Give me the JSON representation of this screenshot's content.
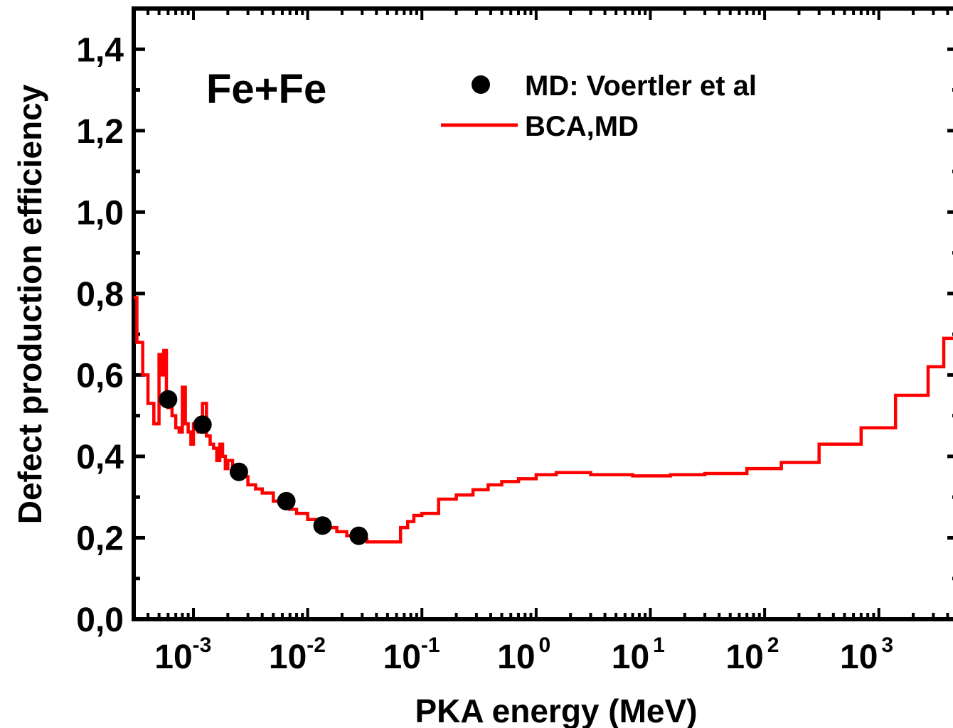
{
  "chart_data": {
    "type": "line",
    "xlabel": "PKA energy (MeV)",
    "ylabel": "Defect production efficiency",
    "xscale": "log",
    "xlim": [
      0.0003,
      5000
    ],
    "ylim": [
      0,
      1.5
    ],
    "x_ticks": [
      {
        "value": 0.001,
        "base": "10",
        "exp": "-3"
      },
      {
        "value": 0.01,
        "base": "10",
        "exp": "-2"
      },
      {
        "value": 0.1,
        "base": "10",
        "exp": "-1"
      },
      {
        "value": 1,
        "base": "10",
        "exp": "0"
      },
      {
        "value": 10,
        "base": "10",
        "exp": "1"
      },
      {
        "value": 100,
        "base": "10",
        "exp": "2"
      },
      {
        "value": 1000,
        "base": "10",
        "exp": "3"
      }
    ],
    "y_ticks": [
      {
        "value": 0.0,
        "label": "0,0"
      },
      {
        "value": 0.2,
        "label": "0,2"
      },
      {
        "value": 0.4,
        "label": "0,4"
      },
      {
        "value": 0.6,
        "label": "0,6"
      },
      {
        "value": 0.8,
        "label": "0,8"
      },
      {
        "value": 1.0,
        "label": "1,0"
      },
      {
        "value": 1.2,
        "label": "1,2"
      },
      {
        "value": 1.4,
        "label": "1,4"
      }
    ],
    "annotation": "Fe+Fe",
    "legend": [
      {
        "label": "MD: Voertler et al",
        "marker": "circle",
        "color": "#000000"
      },
      {
        "label": "BCA,MD",
        "marker": "line",
        "color": "#ff0000"
      }
    ],
    "legend_position": "top-center",
    "series": [
      {
        "name": "MD: Voertler et al",
        "style": "scatter",
        "color": "#000000",
        "x": [
          0.0006,
          0.0012,
          0.0025,
          0.0065,
          0.0135,
          0.028
        ],
        "y": [
          0.54,
          0.478,
          0.362,
          0.29,
          0.23,
          0.205
        ]
      },
      {
        "name": "BCA,MD",
        "style": "step",
        "color": "#ff0000",
        "x": [
          0.0003,
          0.00032,
          0.00036,
          0.0004,
          0.00045,
          0.0005,
          0.00052,
          0.00055,
          0.00058,
          0.0006,
          0.00065,
          0.0007,
          0.00075,
          0.0008,
          0.00085,
          0.0009,
          0.00095,
          0.001,
          0.0011,
          0.0012,
          0.0013,
          0.0014,
          0.0015,
          0.0016,
          0.0017,
          0.0018,
          0.0019,
          0.002,
          0.0022,
          0.0025,
          0.003,
          0.0035,
          0.004,
          0.005,
          0.006,
          0.007,
          0.008,
          0.01,
          0.012,
          0.015,
          0.018,
          0.022,
          0.027,
          0.033,
          0.04,
          0.05,
          0.065,
          0.075,
          0.085,
          0.1,
          0.14,
          0.2,
          0.28,
          0.38,
          0.5,
          0.7,
          1.0,
          1.5,
          3.0,
          7.0,
          15,
          30,
          70,
          140,
          300,
          700,
          1400,
          2700,
          3700,
          5000
        ],
        "y": [
          0.79,
          0.68,
          0.6,
          0.53,
          0.48,
          0.65,
          0.6,
          0.66,
          0.55,
          0.52,
          0.5,
          0.47,
          0.46,
          0.57,
          0.48,
          0.46,
          0.43,
          0.48,
          0.46,
          0.53,
          0.45,
          0.43,
          0.42,
          0.39,
          0.43,
          0.4,
          0.37,
          0.39,
          0.37,
          0.35,
          0.33,
          0.32,
          0.31,
          0.29,
          0.28,
          0.27,
          0.26,
          0.245,
          0.235,
          0.225,
          0.215,
          0.205,
          0.195,
          0.19,
          0.19,
          0.19,
          0.225,
          0.24,
          0.255,
          0.26,
          0.295,
          0.305,
          0.318,
          0.33,
          0.338,
          0.345,
          0.355,
          0.36,
          0.355,
          0.352,
          0.355,
          0.358,
          0.37,
          0.385,
          0.43,
          0.47,
          0.55,
          0.62,
          0.69,
          0.69
        ]
      }
    ]
  }
}
